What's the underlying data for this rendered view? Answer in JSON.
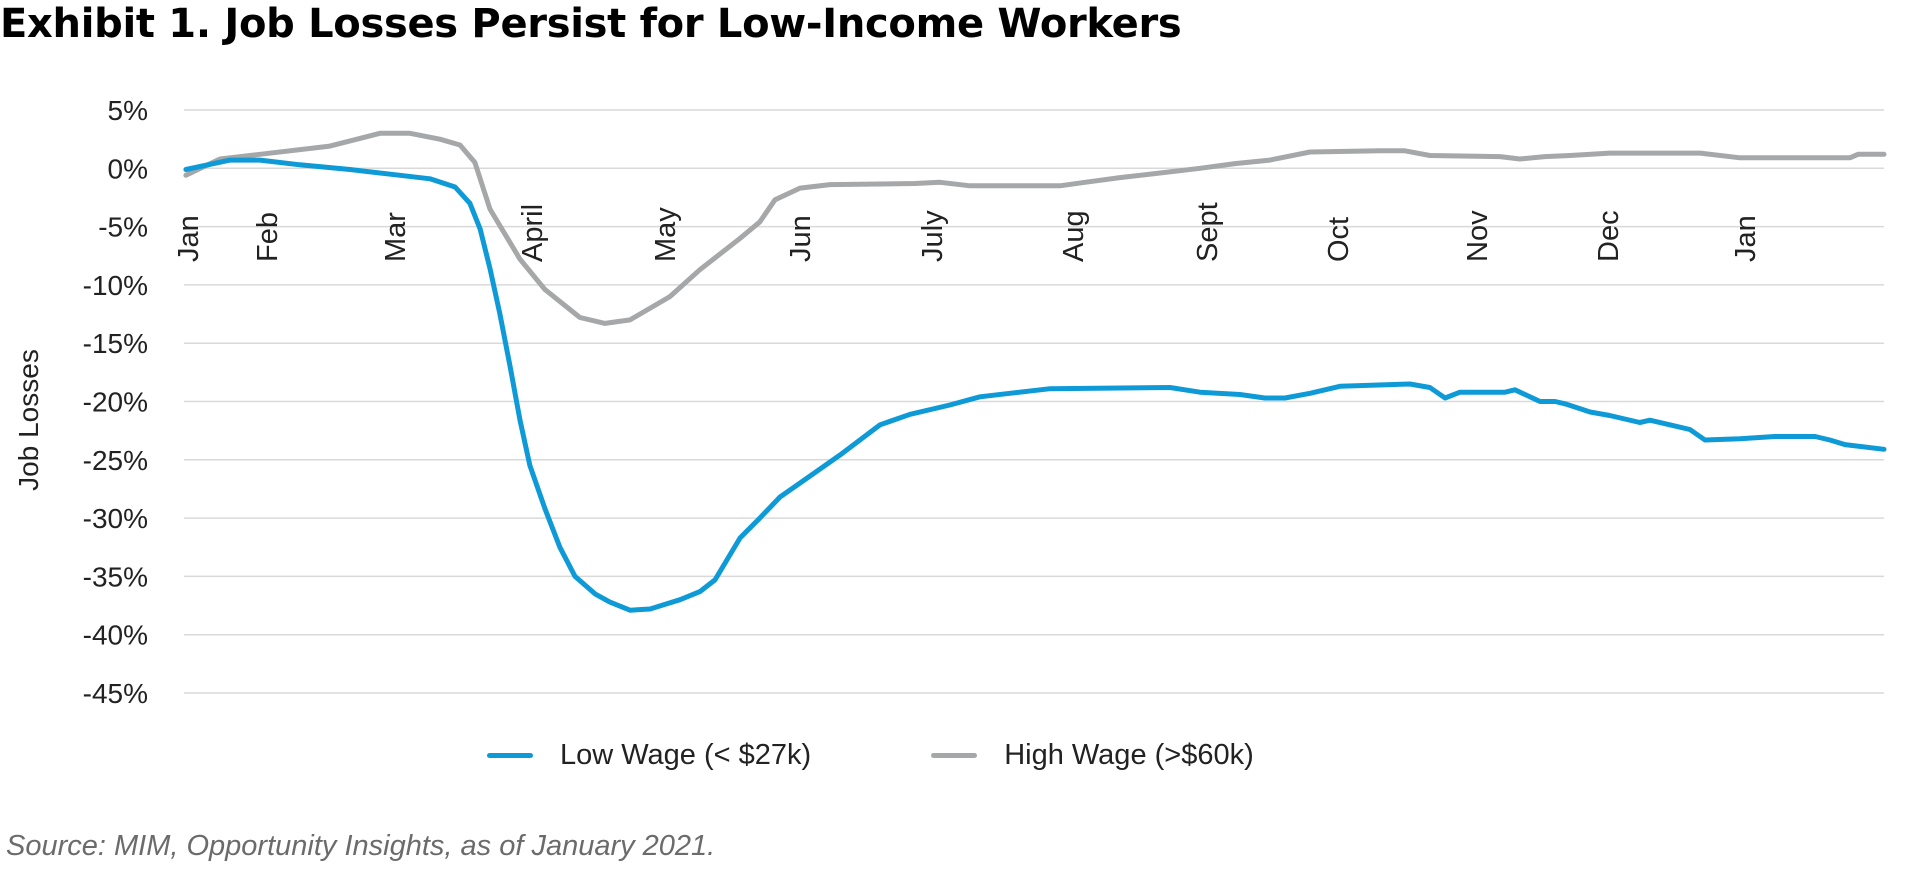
{
  "title": "Exhibit 1. Job Losses Persist for Low-Income Workers",
  "source": "Source: MIM, Opportunity Insights, as of January 2021.",
  "chart_data": {
    "type": "line",
    "title": "Exhibit 1. Job Losses Persist for Low-Income Workers",
    "xlabel": "",
    "ylabel": "Job Losses",
    "x_unit": "weeks since start of Jan 2020",
    "xlim": [
      0,
      55
    ],
    "ylim": [
      -45,
      5
    ],
    "y_ticks": [
      5,
      0,
      -5,
      -10,
      -15,
      -20,
      -25,
      -30,
      -35,
      -40,
      -45
    ],
    "y_tick_labels": [
      "5%",
      "0%",
      "-5%",
      "-10%",
      "-15%",
      "-20%",
      "-25%",
      "-30%",
      "-35%",
      "-40%",
      "-45%"
    ],
    "grid": true,
    "x_tick_labels": [
      {
        "label": "Jan",
        "x": 0.13
      },
      {
        "label": "Feb",
        "x": 2.69
      },
      {
        "label": "Mar",
        "x": 6.83
      },
      {
        "label": "April",
        "x": 11.26
      },
      {
        "label": "May",
        "x": 15.56
      },
      {
        "label": "Jun",
        "x": 19.93
      },
      {
        "label": "July",
        "x": 24.2
      },
      {
        "label": "Aug",
        "x": 28.76
      },
      {
        "label": "Sept",
        "x": 33.1
      },
      {
        "label": "Oct",
        "x": 37.33
      },
      {
        "label": "Nov",
        "x": 41.83
      },
      {
        "label": "Dec",
        "x": 46.07
      },
      {
        "label": "Jan",
        "x": 50.5
      }
    ],
    "legend_position": "bottom",
    "series": [
      {
        "name": "Low Wage (< $27k)",
        "color": "#0e9ad7",
        "points": [
          [
            0.06,
            -0.1
          ],
          [
            1.49,
            0.7
          ],
          [
            2.46,
            0.7
          ],
          [
            3.75,
            0.3
          ],
          [
            5.37,
            -0.1
          ],
          [
            6.99,
            -0.6
          ],
          [
            7.96,
            -0.9
          ],
          [
            8.77,
            -1.6
          ],
          [
            9.25,
            -3.0
          ],
          [
            9.58,
            -5.2
          ],
          [
            9.9,
            -8.6
          ],
          [
            10.22,
            -12.5
          ],
          [
            10.55,
            -17.0
          ],
          [
            10.87,
            -21.6
          ],
          [
            11.19,
            -25.5
          ],
          [
            11.68,
            -29.2
          ],
          [
            12.16,
            -32.5
          ],
          [
            12.65,
            -35.0
          ],
          [
            13.3,
            -36.5
          ],
          [
            13.78,
            -37.2
          ],
          [
            14.43,
            -37.9
          ],
          [
            15.08,
            -37.8
          ],
          [
            15.56,
            -37.4
          ],
          [
            16.05,
            -37.0
          ],
          [
            16.69,
            -36.3
          ],
          [
            17.18,
            -35.3
          ],
          [
            17.99,
            -31.7
          ],
          [
            18.63,
            -30.0
          ],
          [
            19.28,
            -28.2
          ],
          [
            19.93,
            -27.0
          ],
          [
            21.22,
            -24.6
          ],
          [
            22.52,
            -22.0
          ],
          [
            23.49,
            -21.1
          ],
          [
            24.78,
            -20.3
          ],
          [
            25.75,
            -19.6
          ],
          [
            26.72,
            -19.3
          ],
          [
            28.02,
            -18.9
          ],
          [
            31.9,
            -18.8
          ],
          [
            32.87,
            -19.2
          ],
          [
            34.16,
            -19.4
          ],
          [
            34.97,
            -19.7
          ],
          [
            35.62,
            -19.7
          ],
          [
            36.43,
            -19.3
          ],
          [
            37.4,
            -18.7
          ],
          [
            39.66,
            -18.5
          ],
          [
            40.31,
            -18.8
          ],
          [
            40.8,
            -19.7
          ],
          [
            41.28,
            -19.2
          ],
          [
            42.74,
            -19.2
          ],
          [
            43.06,
            -19.0
          ],
          [
            43.87,
            -20.0
          ],
          [
            44.36,
            -20.0
          ],
          [
            44.68,
            -20.2
          ],
          [
            45.49,
            -20.9
          ],
          [
            46.13,
            -21.2
          ],
          [
            47.1,
            -21.8
          ],
          [
            47.43,
            -21.6
          ],
          [
            48.07,
            -22.0
          ],
          [
            48.72,
            -22.4
          ],
          [
            49.21,
            -23.3
          ],
          [
            50.34,
            -23.2
          ],
          [
            51.47,
            -23.0
          ],
          [
            52.77,
            -23.0
          ],
          [
            53.25,
            -23.3
          ],
          [
            53.74,
            -23.7
          ],
          [
            55.0,
            -24.1
          ]
        ]
      },
      {
        "name": "High Wage (>$60k)",
        "color": "#a5a7a9",
        "points": [
          [
            0.06,
            -0.6
          ],
          [
            1.16,
            0.8
          ],
          [
            2.46,
            1.2
          ],
          [
            4.72,
            1.9
          ],
          [
            6.34,
            3.0
          ],
          [
            7.31,
            3.0
          ],
          [
            8.28,
            2.5
          ],
          [
            8.93,
            2.0
          ],
          [
            9.41,
            0.5
          ],
          [
            9.9,
            -3.5
          ],
          [
            10.87,
            -7.8
          ],
          [
            11.68,
            -10.4
          ],
          [
            12.81,
            -12.8
          ],
          [
            13.62,
            -13.3
          ],
          [
            14.43,
            -13.0
          ],
          [
            15.72,
            -11.0
          ],
          [
            16.69,
            -8.7
          ],
          [
            17.99,
            -6.0
          ],
          [
            18.63,
            -4.6
          ],
          [
            19.12,
            -2.7
          ],
          [
            19.93,
            -1.7
          ],
          [
            20.9,
            -1.4
          ],
          [
            23.65,
            -1.3
          ],
          [
            24.46,
            -1.2
          ],
          [
            25.43,
            -1.5
          ],
          [
            28.34,
            -1.5
          ],
          [
            29.15,
            -1.2
          ],
          [
            30.28,
            -0.8
          ],
          [
            31.58,
            -0.4
          ],
          [
            32.87,
            0.0
          ],
          [
            34.0,
            0.4
          ],
          [
            35.13,
            0.7
          ],
          [
            36.43,
            1.4
          ],
          [
            38.69,
            1.5
          ],
          [
            39.5,
            1.5
          ],
          [
            40.31,
            1.1
          ],
          [
            42.58,
            1.0
          ],
          [
            43.22,
            0.8
          ],
          [
            44.03,
            1.0
          ],
          [
            44.84,
            1.1
          ],
          [
            46.13,
            1.3
          ],
          [
            49.05,
            1.3
          ],
          [
            50.34,
            0.9
          ],
          [
            53.9,
            0.9
          ],
          [
            54.16,
            1.2
          ],
          [
            55.0,
            1.2
          ]
        ]
      }
    ]
  }
}
